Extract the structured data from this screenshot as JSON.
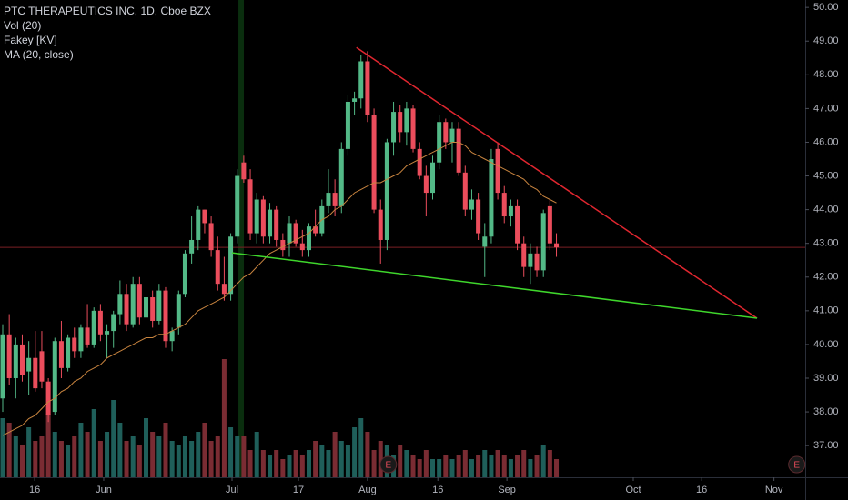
{
  "chart_data": {
    "type": "candlestick",
    "title": "PTC THERAPEUTICS INC, 1D, Cboe BZX",
    "indicators": [
      "Vol (20)",
      "Fakey [KV]",
      "MA (20, close)"
    ],
    "up_color": "#53b987",
    "down_color": "#eb4d5c",
    "volume_up_color": "#1f5f5a",
    "volume_down_color": "#7a2c33",
    "open": [
      38.4,
      40.3,
      39.0,
      40.0,
      39.2,
      39.6,
      39.8,
      38.9,
      38.0,
      40.1,
      39.3,
      40.2,
      39.8,
      40.5,
      40.0,
      41.0,
      40.3,
      40.4,
      40.9,
      41.5,
      40.6,
      41.8,
      40.8,
      41.4,
      40.7,
      41.6,
      40.1,
      40.5,
      41.5,
      42.7,
      43.1,
      44.0,
      43.6,
      42.8,
      41.8,
      41.5,
      43.2,
      45.4,
      44.9,
      43.3,
      44.3,
      43.2,
      44.0,
      43.1,
      43.0,
      43.6,
      43.0,
      42.8,
      43.5,
      43.3,
      44.1,
      44.5,
      44.1,
      45.8,
      47.2,
      47.3,
      48.4,
      46.8,
      44.0,
      43.1,
      46.0,
      46.9,
      46.3,
      47.0,
      45.8,
      45.0,
      44.5,
      45.4,
      46.6,
      46.0,
      46.4,
      45.1,
      44.0,
      44.3,
      42.9,
      43.2,
      45.8,
      44.5,
      43.8,
      44.1,
      43.0,
      42.3,
      42.7,
      42.2,
      44.1,
      43.0
    ],
    "high": [
      40.6,
      40.9,
      40.2,
      40.3,
      40.1,
      40.4,
      40.4,
      39.0,
      40.2,
      40.7,
      40.3,
      40.5,
      40.6,
      41.2,
      41.1,
      41.2,
      40.6,
      41.0,
      41.9,
      41.8,
      42.0,
      42.0,
      41.6,
      41.6,
      41.8,
      41.7,
      40.5,
      41.6,
      42.8,
      43.8,
      44.1,
      44.0,
      43.8,
      43.2,
      42.6,
      43.3,
      45.2,
      45.6,
      45.2,
      44.5,
      44.4,
      44.2,
      44.1,
      43.3,
      43.8,
      43.7,
      43.4,
      43.6,
      44.0,
      44.3,
      45.2,
      44.9,
      46.0,
      47.4,
      47.5,
      48.6,
      48.7,
      47.0,
      44.3,
      46.1,
      47.2,
      47.1,
      47.2,
      47.1,
      46.0,
      45.3,
      45.6,
      46.8,
      46.7,
      46.6,
      46.6,
      45.3,
      44.6,
      44.5,
      43.6,
      45.8,
      46.0,
      44.7,
      44.3,
      44.3,
      43.2,
      43.0,
      42.9,
      44.0,
      44.3,
      43.3
    ],
    "low": [
      38.0,
      38.8,
      38.4,
      38.9,
      38.5,
      38.6,
      38.7,
      37.7,
      37.9,
      39.0,
      39.2,
      39.6,
      39.6,
      39.9,
      39.9,
      40.1,
      39.6,
      39.9,
      40.6,
      40.4,
      40.5,
      40.6,
      40.4,
      40.5,
      40.6,
      39.9,
      39.8,
      40.3,
      41.4,
      42.4,
      42.8,
      43.3,
      42.6,
      41.6,
      41.3,
      41.3,
      43.0,
      44.8,
      43.1,
      43.0,
      43.0,
      43.0,
      42.9,
      42.6,
      42.6,
      42.9,
      42.6,
      42.6,
      43.2,
      43.2,
      43.9,
      43.8,
      43.9,
      45.6,
      46.8,
      47.0,
      46.6,
      43.9,
      42.4,
      42.8,
      45.6,
      46.0,
      45.9,
      45.7,
      44.9,
      43.8,
      44.3,
      45.2,
      45.8,
      45.4,
      45.0,
      43.8,
      43.7,
      43.1,
      42.0,
      43.0,
      44.3,
      43.6,
      43.5,
      42.8,
      42.0,
      41.8,
      42.0,
      42.0,
      42.8,
      42.6
    ],
    "close": [
      40.3,
      39.0,
      40.0,
      39.1,
      39.6,
      38.7,
      38.9,
      37.9,
      40.1,
      39.3,
      40.2,
      39.8,
      40.5,
      40.0,
      41.0,
      40.3,
      40.4,
      40.9,
      41.5,
      40.6,
      41.8,
      40.8,
      41.4,
      40.7,
      41.6,
      40.1,
      40.4,
      41.5,
      42.7,
      43.1,
      44.0,
      43.6,
      42.8,
      41.8,
      41.5,
      43.2,
      45.0,
      44.9,
      43.3,
      44.3,
      43.2,
      44.0,
      43.1,
      42.8,
      43.6,
      43.0,
      42.8,
      43.5,
      43.3,
      44.1,
      44.5,
      44.1,
      45.8,
      47.2,
      47.3,
      48.4,
      46.8,
      44.0,
      43.1,
      46.0,
      46.9,
      46.3,
      47.0,
      45.8,
      45.0,
      44.5,
      45.4,
      46.6,
      46.0,
      46.4,
      45.1,
      44.0,
      44.3,
      43.3,
      43.2,
      45.5,
      44.5,
      43.8,
      44.1,
      43.0,
      42.3,
      42.7,
      42.2,
      43.9,
      43.0,
      42.88
    ],
    "volume": [
      1300,
      1200,
      900,
      700,
      1100,
      800,
      900,
      1400,
      1000,
      800,
      700,
      900,
      1200,
      1000,
      1500,
      800,
      1000,
      1700,
      1200,
      800,
      900,
      700,
      1300,
      1000,
      900,
      1200,
      800,
      700,
      900,
      800,
      1000,
      1200,
      800,
      900,
      2600,
      1100,
      900,
      900,
      600,
      1000,
      600,
      500,
      600,
      400,
      500,
      600,
      500,
      600,
      800,
      700,
      600,
      1000,
      800,
      700,
      1100,
      1300,
      1000,
      600,
      800,
      700,
      500,
      700,
      600,
      500,
      400,
      600,
      400,
      400,
      500,
      400,
      500,
      600,
      400,
      500,
      600,
      500,
      600,
      500,
      400,
      500,
      600,
      400,
      500,
      700,
      600,
      400
    ],
    "ma": {
      "color": "#c8843f",
      "values": [
        37.3,
        37.4,
        37.5,
        37.6,
        37.8,
        37.9,
        38.1,
        38.3,
        38.4,
        38.6,
        38.7,
        38.9,
        39.0,
        39.2,
        39.3,
        39.4,
        39.6,
        39.7,
        39.8,
        39.9,
        40.0,
        40.1,
        40.2,
        40.2,
        40.3,
        40.3,
        40.4,
        40.5,
        40.6,
        40.8,
        41.0,
        41.1,
        41.2,
        41.3,
        41.4,
        41.6,
        41.8,
        42.0,
        42.1,
        42.3,
        42.5,
        42.7,
        42.8,
        42.9,
        43.0,
        43.1,
        43.2,
        43.3,
        43.5,
        43.7,
        43.8,
        44.0,
        44.1,
        44.3,
        44.5,
        44.6,
        44.7,
        44.8,
        44.8,
        44.9,
        45.0,
        45.1,
        45.3,
        45.4,
        45.5,
        45.6,
        45.7,
        45.8,
        45.9,
        46.0,
        46.0,
        45.9,
        45.7,
        45.6,
        45.5,
        45.4,
        45.3,
        45.2,
        45.1,
        45.0,
        44.9,
        44.7,
        44.6,
        44.4,
        44.3,
        44.2
      ]
    },
    "trendlines": [
      {
        "color": "#e0262f",
        "x": [
          54.3,
          115.8
        ],
        "y": [
          48.81,
          40.78
        ]
      },
      {
        "color": "#3fd62c",
        "x": [
          35.2,
          115.8
        ],
        "y": [
          42.72,
          40.78
        ]
      }
    ],
    "last_price_color": "#7a1f24",
    "highlight_x": 36.6,
    "events": [
      {
        "x": 59.2,
        "label": "E"
      },
      {
        "x": 121.9,
        "label": "E"
      }
    ],
    "xlim": [
      -0.42,
      123.2
    ],
    "ylim": [
      36.06,
      50.22
    ],
    "volume_ylim": [
      0,
      3000
    ],
    "xticks": [
      {
        "value": 4.9,
        "label": "16"
      },
      {
        "value": 15.5,
        "label": "Jun"
      },
      {
        "value": 35.2,
        "label": "Jul"
      },
      {
        "value": 45.4,
        "label": "17"
      },
      {
        "value": 56.0,
        "label": "Aug"
      },
      {
        "value": 66.8,
        "label": "16"
      },
      {
        "value": 77.4,
        "label": "Sep"
      },
      {
        "value": 96.8,
        "label": "Oct"
      },
      {
        "value": 107.3,
        "label": "16"
      },
      {
        "value": 118.4,
        "label": "Nov"
      }
    ],
    "yticks": [
      {
        "value": 37,
        "label": "37.00"
      },
      {
        "value": 38,
        "label": "38.00"
      },
      {
        "value": 39,
        "label": "39.00"
      },
      {
        "value": 40,
        "label": "40.00"
      },
      {
        "value": 41,
        "label": "41.00"
      },
      {
        "value": 42,
        "label": "42.00"
      },
      {
        "value": 43,
        "label": "43.00"
      },
      {
        "value": 44,
        "label": "44.00"
      },
      {
        "value": 45,
        "label": "45.00"
      },
      {
        "value": 46,
        "label": "46.00"
      },
      {
        "value": 47,
        "label": "47.00"
      },
      {
        "value": 48,
        "label": "48.00"
      },
      {
        "value": 49,
        "label": "49.00"
      },
      {
        "value": 50,
        "label": "50.00"
      }
    ]
  }
}
